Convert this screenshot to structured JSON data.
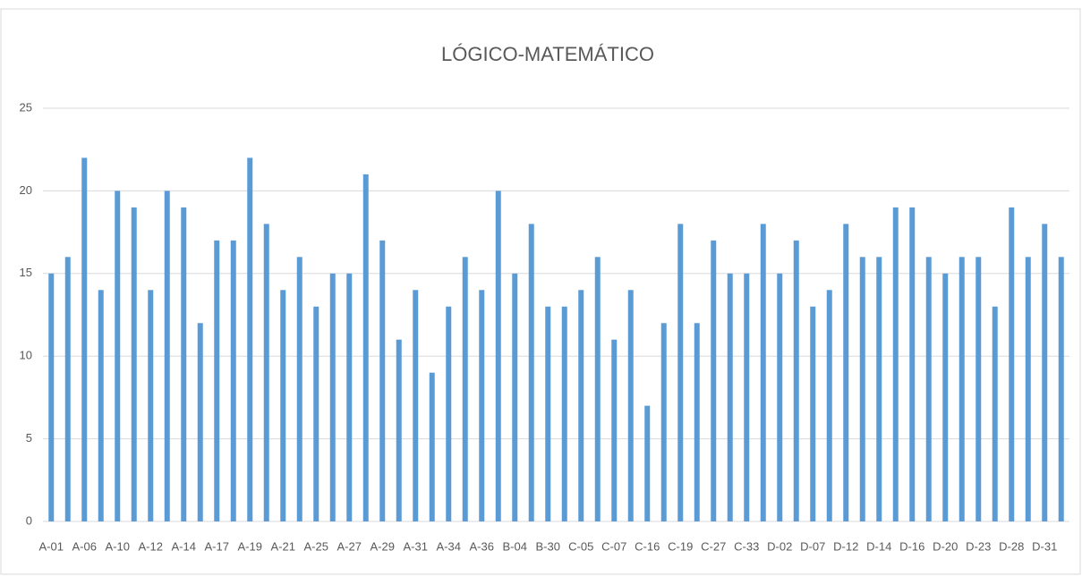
{
  "chart_data": {
    "type": "bar",
    "title": "LÓGICO-MATEMÁTICO",
    "categories": [
      "A-01",
      null,
      "A-06",
      null,
      "A-10",
      null,
      "A-12",
      null,
      "A-14",
      null,
      "A-17",
      null,
      "A-19",
      null,
      "A-21",
      null,
      "A-25",
      null,
      "A-27",
      null,
      "A-29",
      null,
      "A-31",
      null,
      "A-34",
      null,
      "A-36",
      null,
      "B-04",
      null,
      "B-30",
      null,
      "C-05",
      null,
      "C-07",
      null,
      "C-16",
      null,
      "C-19",
      null,
      "C-27",
      null,
      "C-33",
      null,
      "D-02",
      null,
      "D-07",
      null,
      "D-12",
      null,
      "D-14",
      null,
      "D-16",
      null,
      "D-20",
      null,
      "D-23",
      null,
      "D-28",
      null,
      "D-31",
      null
    ],
    "values": [
      15,
      16,
      22,
      14,
      20,
      19,
      14,
      20,
      19,
      12,
      17,
      17,
      22,
      18,
      14,
      16,
      13,
      15,
      15,
      21,
      17,
      11,
      14,
      9,
      13,
      16,
      14,
      20,
      15,
      18,
      13,
      13,
      14,
      16,
      11,
      14,
      7,
      12,
      18,
      12,
      17,
      15,
      15,
      18,
      15,
      17,
      13,
      14,
      18,
      16,
      16,
      19,
      19,
      16,
      15,
      16,
      16,
      13,
      19,
      16,
      18,
      16
    ],
    "color": "#5b9bd5",
    "ylim": [
      0,
      25
    ],
    "yticks": [
      0,
      5,
      10,
      15,
      20,
      25
    ],
    "grid": true
  }
}
